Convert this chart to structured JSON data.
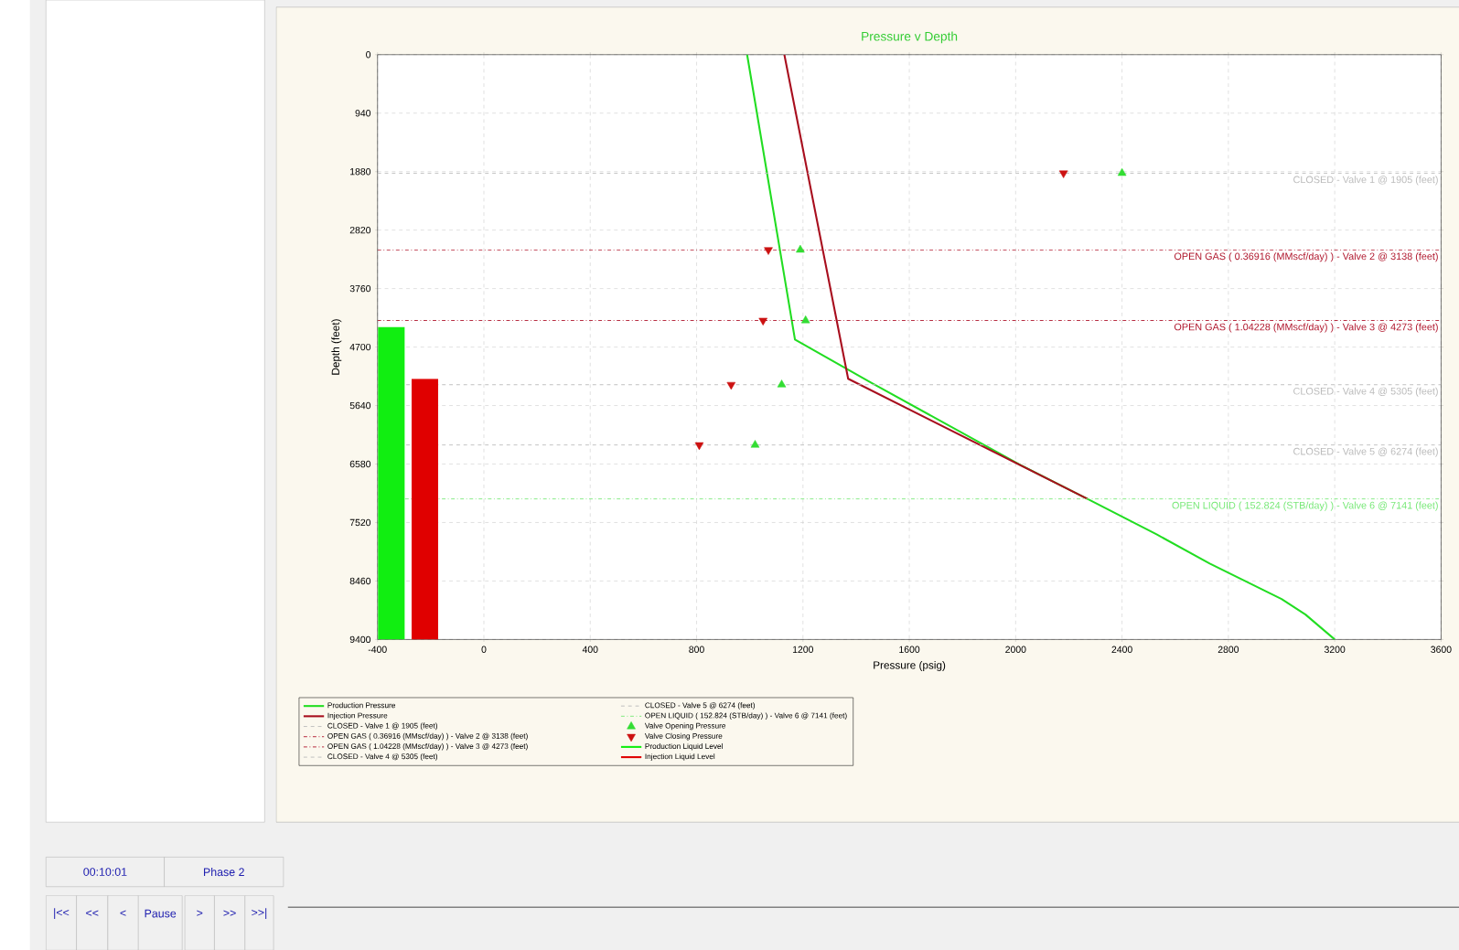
{
  "chart_data": {
    "type": "line",
    "title": "Pressure v Depth",
    "xlabel": "Pressure  (psig)",
    "ylabel": "Depth  (feet)",
    "xlim": [
      -400,
      3600
    ],
    "xticks": [
      -400,
      0,
      400,
      800,
      1200,
      1600,
      2000,
      2400,
      2800,
      3200,
      3600
    ],
    "ylim": [
      9400,
      0
    ],
    "yticks": [
      0,
      940,
      1880,
      2820,
      3760,
      4700,
      5640,
      6580,
      7520,
      8460,
      9400
    ],
    "grid": true,
    "legend": "bottom",
    "series": [
      {
        "name": "Production Pressure",
        "color": "#22dd22",
        "x": [
          990,
          1170,
          1460,
          2020,
          2270,
          2530,
          2730,
          3000,
          3090,
          3200
        ],
        "values": [
          0,
          4580,
          5280,
          6600,
          7140,
          7710,
          8180,
          8750,
          9000,
          9400
        ]
      },
      {
        "name": "Injection Pressure",
        "color": "#a80e1e",
        "x": [
          1130,
          1370,
          2270
        ],
        "values": [
          0,
          5210,
          7140
        ]
      },
      {
        "name": "Valve Opening Pressure",
        "type": "scatter",
        "marker": "triangle",
        "color": "#33dd33",
        "x": [
          2400,
          1190,
          1210,
          1120,
          1020
        ],
        "values": [
          1905,
          3138,
          4273,
          5305,
          6274
        ]
      },
      {
        "name": "Valve Closing Pressure",
        "type": "scatter",
        "marker": "triangle-down",
        "color": "#cc1111",
        "x": [
          2180,
          1070,
          1050,
          930,
          810
        ],
        "values": [
          1905,
          3138,
          4273,
          5305,
          6274
        ]
      },
      {
        "name": "Production Liquid Level",
        "type": "bar",
        "color": "#11ee11",
        "x": [
          -348
        ],
        "base": [
          9400
        ],
        "values": [
          -5020
        ]
      },
      {
        "name": "Injection Liquid Level",
        "type": "bar",
        "color": "#e00000",
        "x": [
          -222
        ],
        "base": [
          9400
        ],
        "values": [
          -4190
        ]
      }
    ],
    "ref_lines": [
      {
        "axis": "y",
        "value": 1905,
        "label": "CLOSED - Valve 1 @ 1905 (feet)",
        "color": "#bbbbbb",
        "line_style": "dashed"
      },
      {
        "axis": "y",
        "value": 3138,
        "label": "OPEN GAS ( 0.36916 (MMscf/day) ) - Valve 2 @ 3138 (feet)",
        "color": "#b0182e",
        "line_style": "dashdot"
      },
      {
        "axis": "y",
        "value": 4273,
        "label": "OPEN GAS ( 1.04228 (MMscf/day) ) - Valve 3 @ 4273 (feet)",
        "color": "#b0182e",
        "line_style": "dashdot"
      },
      {
        "axis": "y",
        "value": 5305,
        "label": "CLOSED - Valve 4 @ 5305 (feet)",
        "color": "#bbbbbb",
        "line_style": "dashed"
      },
      {
        "axis": "y",
        "value": 6274,
        "label": "CLOSED - Valve 5 @ 6274 (feet)",
        "color": "#bbbbbb",
        "line_style": "dashed"
      },
      {
        "axis": "y",
        "value": 7141,
        "label": "OPEN LIQUID ( 152.824 (STB/day) ) - Valve 6 @ 7141 (feet)",
        "color": "#77e877",
        "line_style": "dashdot"
      }
    ],
    "annotations": [
      "00:10:01",
      "Phase 2",
      "|<<",
      "<<",
      "<",
      "Pause",
      ">",
      ">>",
      ">>|"
    ]
  }
}
